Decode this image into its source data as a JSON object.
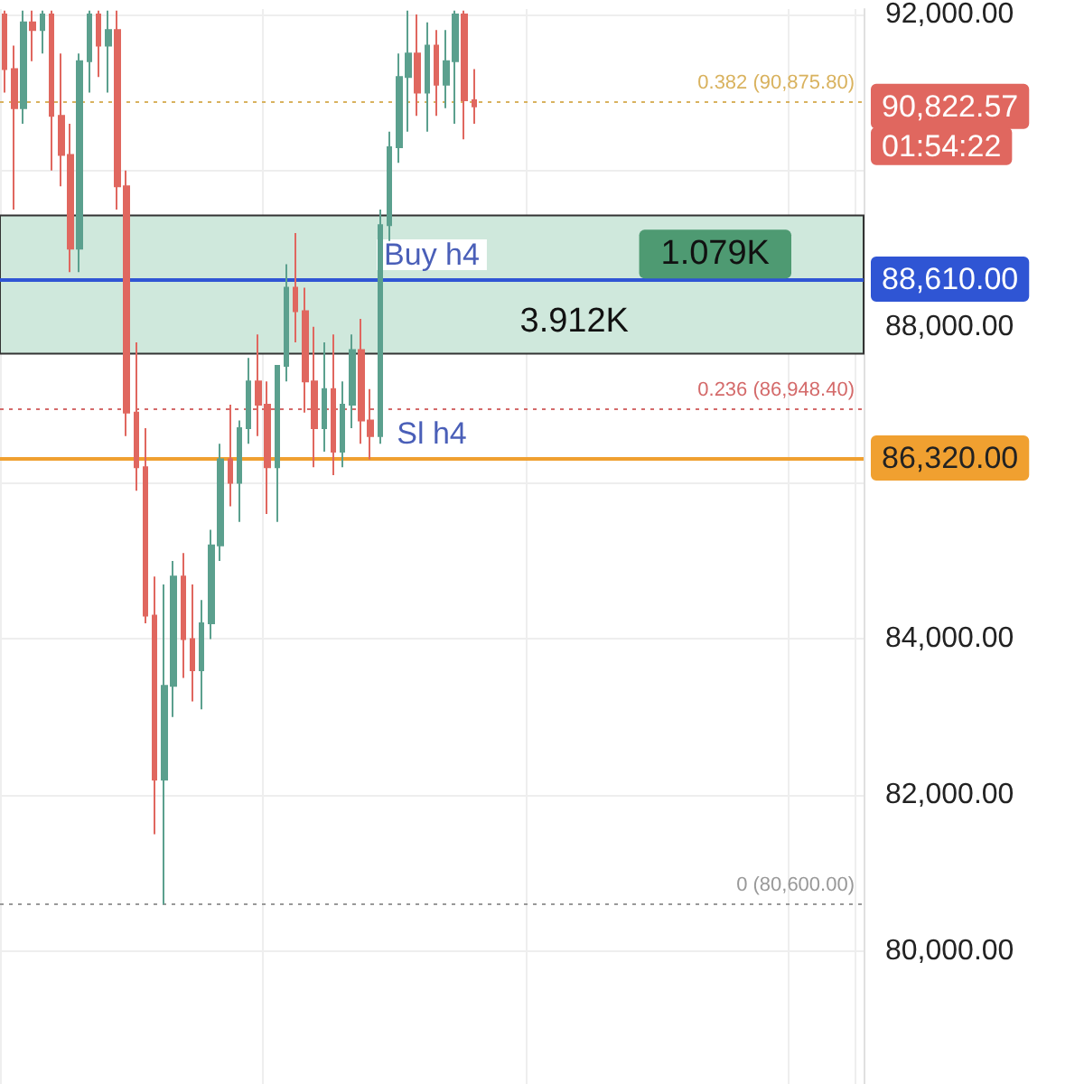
{
  "chart_data": {
    "type": "candlestick",
    "categories": [
      null,
      null,
      null,
      null,
      null,
      null,
      null,
      null,
      null,
      null,
      null,
      null,
      null,
      null,
      null,
      null,
      null,
      null,
      null,
      null,
      null,
      null,
      null,
      null,
      null,
      null,
      null,
      null,
      null,
      null,
      null,
      null,
      null,
      null,
      null,
      null,
      null,
      null,
      null,
      null,
      null,
      null,
      null,
      null,
      null,
      null,
      null,
      null,
      null,
      null,
      null,
      null,
      null,
      null,
      null,
      null,
      null,
      null,
      null,
      null,
      null,
      null,
      null,
      null,
      null,
      null,
      null,
      null,
      null,
      null,
      null,
      null,
      null,
      null,
      null,
      null,
      null,
      null,
      null,
      null,
      null,
      null,
      null,
      null,
      null,
      null,
      null,
      null,
      null,
      null,
      null,
      null
    ],
    "colors": [
      "#e0675f",
      "#e0675f",
      "#5ba08e",
      "#e0675f",
      "#5ba08e",
      "#e0675f",
      "#e0675f",
      "#e0675f",
      "#5ba08e",
      "#5ba08e",
      "#e0675f",
      "#5ba08e",
      "#e0675f",
      "#e0675f",
      "#e0675f",
      "#e0675f",
      "#e0675f",
      "#5ba08e",
      "#5ba08e",
      "#e0675f",
      "#e0675f",
      "#5ba08e",
      "#5ba08e",
      "#5ba08e",
      "#e0675f",
      "#5ba08e",
      "#5ba08e",
      "#e0675f",
      "#e0675f",
      "#5ba08e",
      "#5ba08e",
      "#e0675f",
      "#e0675f",
      "#e0675f",
      "#5ba08e",
      "#e0675f",
      "#5ba08e",
      "#5ba08e",
      "#e0675f",
      "#e0675f",
      "#5ba08e",
      "#5ba08e",
      "#5ba08e",
      "#5ba08e",
      "#e0675f",
      "#5ba08e",
      "#e0675f",
      "#5ba08e",
      "#5ba08e",
      "#e0675f",
      "#e0675f",
      null,
      null,
      null,
      null,
      null,
      null,
      null,
      null,
      null,
      null,
      null,
      null,
      null,
      null,
      null,
      null,
      null,
      null,
      null,
      null,
      null,
      null,
      null,
      null,
      null,
      null,
      null,
      null,
      null,
      null,
      null,
      null,
      null,
      null,
      null,
      null,
      null,
      null,
      null,
      null,
      null
    ],
    "ohlc": [
      [
        92000,
        92050,
        91000,
        91300
      ],
      [
        91300,
        91600,
        89500,
        90800
      ],
      [
        90800,
        92050,
        90600,
        91900
      ],
      [
        91900,
        92050,
        91400,
        91800
      ],
      [
        91800,
        92050,
        91500,
        92000
      ],
      [
        92000,
        92050,
        90000,
        90700
      ],
      [
        90700,
        91500,
        89800,
        90200
      ],
      [
        90200,
        90600,
        88700,
        89000
      ],
      [
        89000,
        91500,
        88700,
        91400
      ],
      [
        91400,
        92050,
        91000,
        92000
      ],
      [
        92000,
        92050,
        91200,
        91600
      ],
      [
        91600,
        92050,
        91000,
        91800
      ],
      [
        91800,
        92050,
        89500,
        89800
      ],
      [
        89800,
        90000,
        86600,
        86900
      ],
      [
        86900,
        87800,
        85900,
        86200
      ],
      [
        86200,
        86700,
        84200,
        84300
      ],
      [
        84300,
        84800,
        81500,
        82200
      ],
      [
        82200,
        84700,
        80600,
        83400
      ],
      [
        83400,
        85000,
        83000,
        84800
      ],
      [
        84800,
        85100,
        83500,
        84000
      ],
      [
        84000,
        84700,
        83200,
        83600
      ],
      [
        83600,
        84500,
        83100,
        84200
      ],
      [
        84200,
        85400,
        84000,
        85200
      ],
      [
        85200,
        86500,
        85000,
        86300
      ],
      [
        86300,
        87000,
        85700,
        86000
      ],
      [
        86000,
        86800,
        85500,
        86700
      ],
      [
        86700,
        87600,
        86500,
        87300
      ],
      [
        87300,
        87900,
        86600,
        87000
      ],
      [
        87000,
        87300,
        85600,
        86200
      ],
      [
        86200,
        87500,
        85500,
        87500
      ],
      [
        87500,
        88800,
        87300,
        88500
      ],
      [
        88500,
        89200,
        87800,
        88200
      ],
      [
        88200,
        88500,
        86900,
        87300
      ],
      [
        87300,
        88000,
        86200,
        86700
      ],
      [
        86700,
        87800,
        86400,
        87200
      ],
      [
        87200,
        87900,
        86100,
        86400
      ],
      [
        86400,
        87300,
        86200,
        87000
      ],
      [
        87000,
        87900,
        86700,
        87700
      ],
      [
        87700,
        88100,
        86500,
        86800
      ],
      [
        86800,
        87200,
        86300,
        86600
      ],
      [
        86600,
        89500,
        86500,
        89300
      ],
      [
        89300,
        90500,
        89100,
        90300
      ],
      [
        90300,
        91500,
        90100,
        91200
      ],
      [
        91200,
        92050,
        90500,
        91500
      ],
      [
        91500,
        92000,
        90700,
        91000
      ],
      [
        91000,
        91900,
        90500,
        91600
      ],
      [
        91600,
        91800,
        90700,
        91100
      ],
      [
        91100,
        91800,
        90800,
        91400
      ],
      [
        91400,
        92050,
        90600,
        92000
      ],
      [
        92000,
        92050,
        90400,
        90900
      ],
      [
        90900,
        91300,
        90600,
        90822.57
      ],
      null,
      null,
      null,
      null,
      null,
      null,
      null,
      null,
      null,
      null,
      null,
      null,
      null,
      null,
      null,
      null,
      null,
      null,
      null,
      null,
      null,
      null,
      null,
      null,
      null,
      null,
      null,
      null,
      null,
      null,
      null,
      null,
      null,
      null,
      null,
      null,
      null,
      null,
      null,
      null,
      null
    ],
    "ylim": [
      78300,
      92070
    ],
    "yticks": [
      {
        "value": 80000,
        "label": "80,000.00"
      },
      {
        "value": 82000,
        "label": "82,000.00"
      },
      {
        "value": 84000,
        "label": "84,000.00"
      },
      {
        "value": 86000,
        "label": null
      },
      {
        "value": 88000,
        "label": "88,000.00"
      },
      {
        "value": 90000,
        "label": null
      },
      {
        "value": 92000,
        "label": "92,000.00"
      }
    ],
    "tick_labels": "y",
    "grid": true,
    "ref_lines": [
      {
        "axis": "y",
        "value": 88610,
        "label": "Buy h4",
        "color": "#2f55d4",
        "line_style": "solid"
      },
      {
        "axis": "y",
        "value": 86320,
        "label": "Sl h4",
        "color": "#f0a030",
        "line_style": "solid"
      },
      {
        "axis": "y",
        "value": 90875.8,
        "label": "0.382 (90,875.80)",
        "color": "#d9b25e",
        "line_style": "dotted"
      },
      {
        "axis": "y",
        "value": 86948.4,
        "label": "0.236 (86,948.40)",
        "color": "#d46a6a",
        "line_style": "dotted"
      },
      {
        "axis": "y",
        "value": 80600,
        "label": "0 (80,600.00)",
        "color": "#999999",
        "line_style": "dotted"
      }
    ],
    "bands": [
      {
        "axis": "y",
        "from": 87655,
        "to": 89425,
        "color": "#cfe8dc"
      }
    ],
    "annotations": [
      "90,822.57",
      "88,610.00",
      "86,320.00",
      "01:54:22",
      "1.079K",
      "3.912K"
    ]
  }
}
